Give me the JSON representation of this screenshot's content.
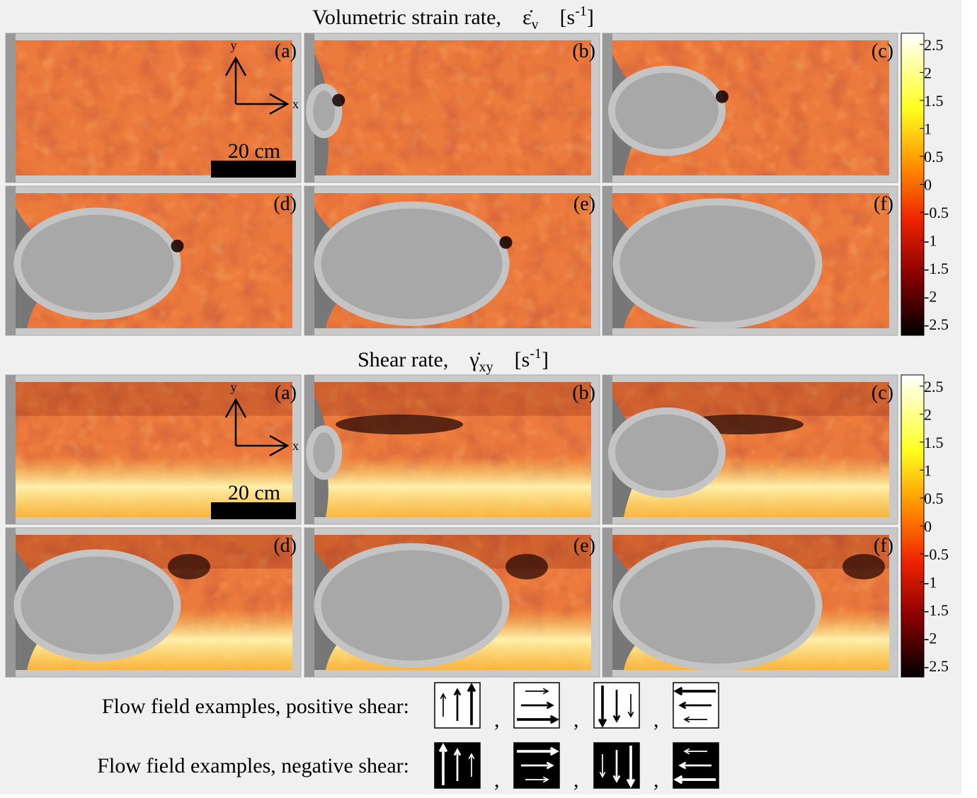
{
  "figure": {
    "strain": {
      "title": {
        "prefix": "Volumetric strain rate,",
        "symbol": "ε̇",
        "symbol_sub": "v",
        "unit_open": "[s",
        "unit_sup": "-1",
        "unit_close": "]"
      },
      "panels": [
        "(a)",
        "(b)",
        "(c)",
        "(d)",
        "(e)",
        "(f)"
      ],
      "axis_y": "y",
      "axis_x": "x",
      "scale": "20 cm",
      "colorbar": {
        "lim": [
          -2.7,
          2.7
        ],
        "ticks": [
          2.5,
          2,
          1.5,
          1,
          0.5,
          0,
          -0.5,
          -1,
          -1.5,
          -2,
          -2.5
        ]
      }
    },
    "shear": {
      "title": {
        "prefix": "Shear rate,",
        "symbol": "γ̇",
        "symbol_sub": "xy",
        "unit_open": "[s",
        "unit_sup": "-1",
        "unit_close": "]"
      },
      "panels": [
        "(a)",
        "(b)",
        "(c)",
        "(d)",
        "(e)",
        "(f)"
      ],
      "axis_y": "y",
      "axis_x": "x",
      "scale": "20 cm",
      "colorbar": {
        "lim": [
          -2.7,
          2.7
        ],
        "ticks": [
          2.5,
          2,
          1.5,
          1,
          0.5,
          0,
          -0.5,
          -1,
          -1.5,
          -2,
          -2.5
        ]
      }
    },
    "flow": {
      "positive": "Flow field examples, positive shear:",
      "negative": "Flow field examples, negative shear:",
      "separator": ","
    }
  }
}
